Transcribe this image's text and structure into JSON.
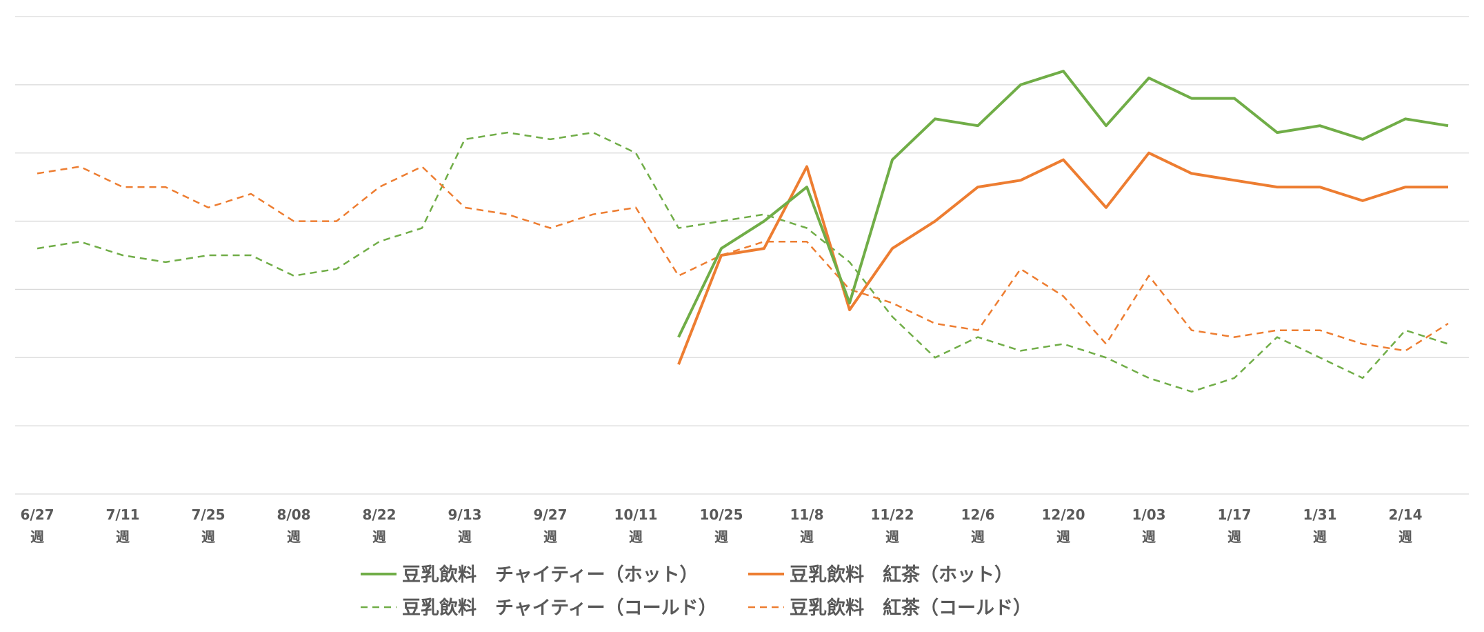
{
  "chart_data": {
    "type": "line",
    "title": "",
    "xlabel": "",
    "ylabel": "",
    "y_tick_labels_shown": false,
    "grid": "horizontal",
    "legend_position": "bottom",
    "x": [
      "6/27週",
      "",
      "7/11週",
      "",
      "7/25週",
      "",
      "8/08週",
      "",
      "8/22週",
      "",
      "9/13週",
      "",
      "9/27週",
      "",
      "10/11週",
      "",
      "10/25週",
      "",
      "11/8週",
      "",
      "11/22週",
      "",
      "12/6週",
      "",
      "12/20週",
      "",
      "1/03週",
      "",
      "1/17週",
      "",
      "1/31週",
      "",
      "2/14週",
      ""
    ],
    "x_tick_labels": [
      {
        "index": 0,
        "line1": "6/27",
        "line2": "週"
      },
      {
        "index": 2,
        "line1": "7/11",
        "line2": "週"
      },
      {
        "index": 4,
        "line1": "7/25",
        "line2": "週"
      },
      {
        "index": 6,
        "line1": "8/08",
        "line2": "週"
      },
      {
        "index": 8,
        "line1": "8/22",
        "line2": "週"
      },
      {
        "index": 10,
        "line1": "9/13",
        "line2": "週"
      },
      {
        "index": 12,
        "line1": "9/27",
        "line2": "週"
      },
      {
        "index": 14,
        "line1": "10/11",
        "line2": "週"
      },
      {
        "index": 16,
        "line1": "10/25",
        "line2": "週"
      },
      {
        "index": 18,
        "line1": "11/8",
        "line2": "週"
      },
      {
        "index": 20,
        "line1": "11/22",
        "line2": "週"
      },
      {
        "index": 22,
        "line1": "12/6",
        "line2": "週"
      },
      {
        "index": 24,
        "line1": "12/20",
        "line2": "週"
      },
      {
        "index": 26,
        "line1": "1/03",
        "line2": "週"
      },
      {
        "index": 28,
        "line1": "1/17",
        "line2": "週"
      },
      {
        "index": 30,
        "line1": "1/31",
        "line2": "週"
      },
      {
        "index": 32,
        "line1": "2/14",
        "line2": "週"
      }
    ],
    "ylim": [
      0,
      7
    ],
    "grid_lines": 7,
    "series": [
      {
        "name": "豆乳飲料　チャイティー（ホット）",
        "color": "#70ad47",
        "dash": "solid",
        "values": [
          null,
          null,
          null,
          null,
          null,
          null,
          null,
          null,
          null,
          null,
          null,
          null,
          null,
          null,
          null,
          2.3,
          3.6,
          4.0,
          4.5,
          2.8,
          4.9,
          5.5,
          5.4,
          6.0,
          6.2,
          5.4,
          6.1,
          5.8,
          5.8,
          5.3,
          5.4,
          5.2,
          5.5,
          5.4
        ]
      },
      {
        "name": "豆乳飲料　紅茶（ホット）",
        "color": "#ed7d31",
        "dash": "solid",
        "values": [
          null,
          null,
          null,
          null,
          null,
          null,
          null,
          null,
          null,
          null,
          null,
          null,
          null,
          null,
          null,
          1.9,
          3.5,
          3.6,
          4.8,
          2.7,
          3.6,
          4.0,
          4.5,
          4.6,
          4.9,
          4.2,
          5.0,
          4.7,
          4.6,
          4.5,
          4.5,
          4.3,
          4.5,
          4.5
        ]
      },
      {
        "name": "豆乳飲料　チャイティー（コールド）",
        "color": "#70ad47",
        "dash": "dashed",
        "values": [
          3.6,
          3.7,
          3.5,
          3.4,
          3.5,
          3.5,
          3.2,
          3.3,
          3.7,
          3.9,
          5.2,
          5.3,
          5.2,
          5.3,
          5.0,
          3.9,
          4.0,
          4.1,
          3.9,
          3.4,
          2.6,
          2.0,
          2.3,
          2.1,
          2.2,
          2.0,
          1.7,
          1.5,
          1.7,
          2.3,
          2.0,
          1.7,
          2.4,
          2.2
        ]
      },
      {
        "name": "豆乳飲料　紅茶（コールド）",
        "color": "#ed7d31",
        "dash": "dashed",
        "values": [
          4.7,
          4.8,
          4.5,
          4.5,
          4.2,
          4.4,
          4.0,
          4.0,
          4.5,
          4.8,
          4.2,
          4.1,
          3.9,
          4.1,
          4.2,
          3.2,
          3.5,
          3.7,
          3.7,
          3.0,
          2.8,
          2.5,
          2.4,
          3.3,
          2.9,
          2.2,
          3.2,
          2.4,
          2.3,
          2.4,
          2.4,
          2.2,
          2.1,
          2.5
        ]
      }
    ]
  }
}
